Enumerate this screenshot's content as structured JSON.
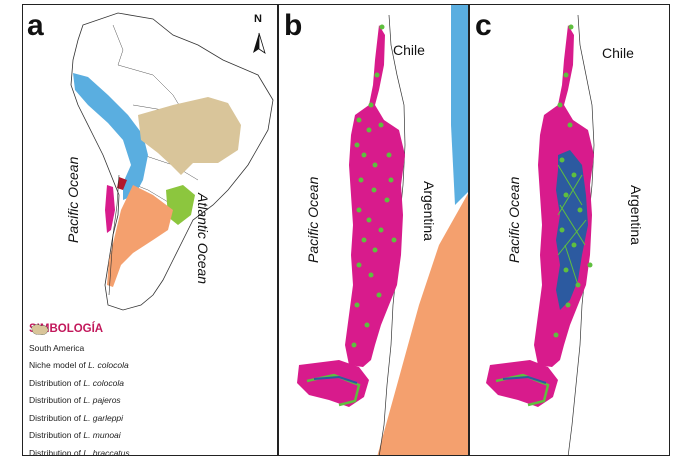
{
  "panels": {
    "a": {
      "label": "a",
      "north_label": "N",
      "ocean_left": "Pacific Ocean",
      "ocean_right": "Atlantic Ocean"
    },
    "b": {
      "label": "b",
      "country_top": "Chile",
      "country_right": "Argentina",
      "ocean_left": "Pacific Ocean"
    },
    "c": {
      "label": "c",
      "country_top": "Chile",
      "country_right": "Argentina",
      "ocean_left": "Pacific Ocean"
    }
  },
  "legend": {
    "title": "SIMBOLOGÍA",
    "items": [
      {
        "prefix": "South America",
        "species": "",
        "color": "#ffffff"
      },
      {
        "prefix": "Niche model of ",
        "species": "L. colocola",
        "color": "#d81b8c"
      },
      {
        "prefix": "Distribution of ",
        "species": "L. colocola",
        "color": "#b2182b"
      },
      {
        "prefix": "Distribution of ",
        "species": "L. pajeros",
        "color": "#f4a06e"
      },
      {
        "prefix": "Distribution of ",
        "species": "L. garleppi",
        "color": "#5aaee0"
      },
      {
        "prefix": "Distribution of ",
        "species": "L. munoai",
        "color": "#8cc63e"
      },
      {
        "prefix": "Distribution of ",
        "species": "L. braccatus",
        "color": "#d9c59a"
      }
    ]
  },
  "colors": {
    "niche": "#d81b8c",
    "colocola": "#b2182b",
    "pajeros": "#f4a06e",
    "garleppi": "#5aaee0",
    "munoai": "#8cc63e",
    "braccatus": "#d9c59a",
    "records": "#5fbf3f",
    "network": "#2c5aa0"
  }
}
